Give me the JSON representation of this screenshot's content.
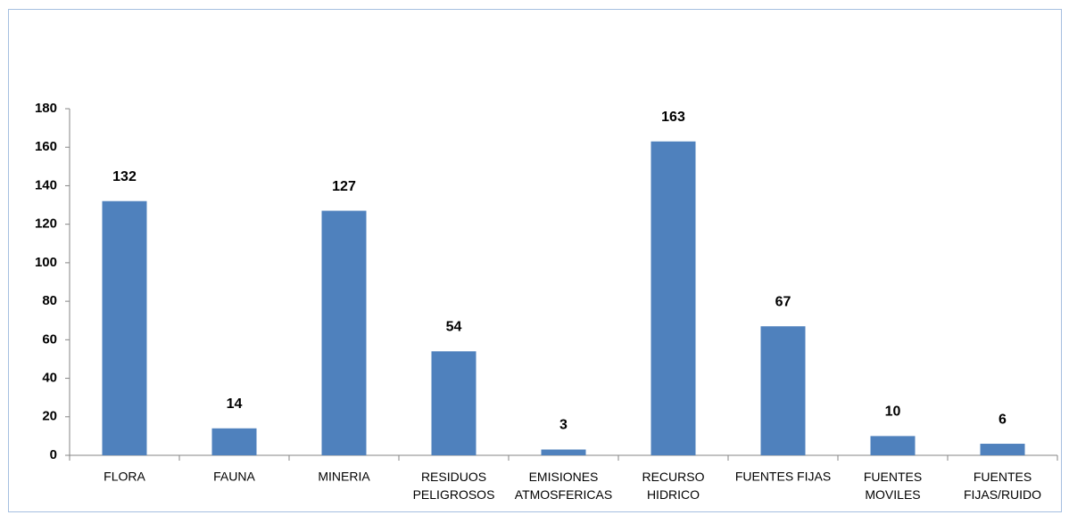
{
  "chart_data": {
    "type": "bar",
    "categories": [
      "FLORA",
      "FAUNA",
      "MINERIA",
      "RESIDUOS\nPELIGROSOS",
      "EMISIONES\nATMOSFERICAS",
      "RECURSO\nHIDRICO",
      "FUENTES FIJAS",
      "FUENTES\nMOVILES",
      "FUENTES\nFIJAS/RUIDO"
    ],
    "values": [
      132,
      14,
      127,
      54,
      3,
      163,
      67,
      10,
      6
    ],
    "color": "#4f81bd",
    "ylim": [
      0,
      180
    ],
    "yticks": [
      0,
      20,
      40,
      60,
      80,
      100,
      120,
      140,
      160,
      180
    ],
    "grid": false
  }
}
